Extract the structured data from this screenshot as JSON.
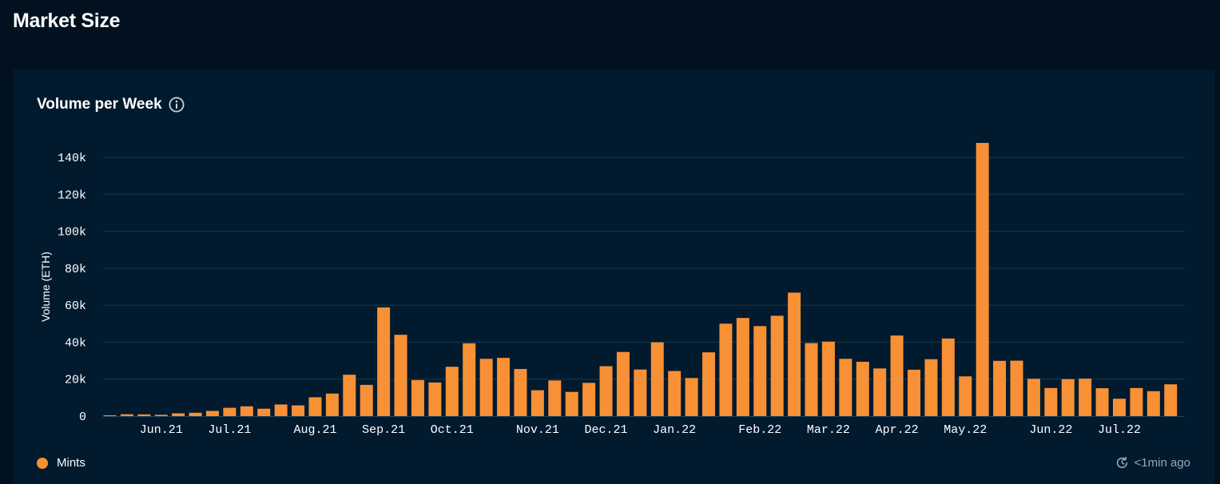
{
  "page": {
    "title": "Market Size"
  },
  "card": {
    "title": "Volume per Week",
    "info_icon": "info-icon",
    "updated_icon": "refresh-clock-icon",
    "updated_text": "<1min ago"
  },
  "colors": {
    "bar": "#f89035",
    "grid": "#17384e",
    "background": "#021a2e"
  },
  "chart_data": {
    "type": "bar",
    "title": "Volume per Week",
    "ylabel": "Volume (ETH)",
    "xlabel": "",
    "ylim": [
      0,
      150000
    ],
    "yticks": [
      0,
      20000,
      40000,
      60000,
      80000,
      100000,
      120000,
      140000
    ],
    "ytick_labels": [
      "0",
      "20k",
      "40k",
      "60k",
      "80k",
      "100k",
      "120k",
      "140k"
    ],
    "grid": true,
    "legend": {
      "position": "bottom-left",
      "entries": [
        "Mints"
      ]
    },
    "xtick_labels": [
      {
        "label": "Jun.21",
        "bar_index": 3
      },
      {
        "label": "Jul.21",
        "bar_index": 7
      },
      {
        "label": "Aug.21",
        "bar_index": 12
      },
      {
        "label": "Sep.21",
        "bar_index": 16
      },
      {
        "label": "Oct.21",
        "bar_index": 20
      },
      {
        "label": "Nov.21",
        "bar_index": 25
      },
      {
        "label": "Dec.21",
        "bar_index": 29
      },
      {
        "label": "Jan.22",
        "bar_index": 33
      },
      {
        "label": "Feb.22",
        "bar_index": 38
      },
      {
        "label": "Mar.22",
        "bar_index": 42
      },
      {
        "label": "Apr.22",
        "bar_index": 46
      },
      {
        "label": "May.22",
        "bar_index": 50
      },
      {
        "label": "Jun.22",
        "bar_index": 55
      },
      {
        "label": "Jul.22",
        "bar_index": 59
      }
    ],
    "series": [
      {
        "name": "Mints",
        "values": [
          200,
          1000,
          900,
          700,
          1500,
          1800,
          2800,
          4500,
          5300,
          4000,
          6300,
          5800,
          10200,
          12200,
          22400,
          16900,
          58800,
          44000,
          19500,
          18200,
          26700,
          39400,
          31000,
          31500,
          25500,
          14000,
          19300,
          13100,
          18000,
          27000,
          34700,
          25200,
          39900,
          24400,
          20600,
          34500,
          50000,
          53100,
          48700,
          54300,
          66800,
          39500,
          40300,
          31000,
          29400,
          25800,
          43600,
          25100,
          30800,
          42000,
          21500,
          147800,
          29900,
          30000,
          20200,
          15200,
          20000,
          20300,
          15100,
          9400,
          15200,
          13500,
          17200
        ]
      }
    ]
  }
}
